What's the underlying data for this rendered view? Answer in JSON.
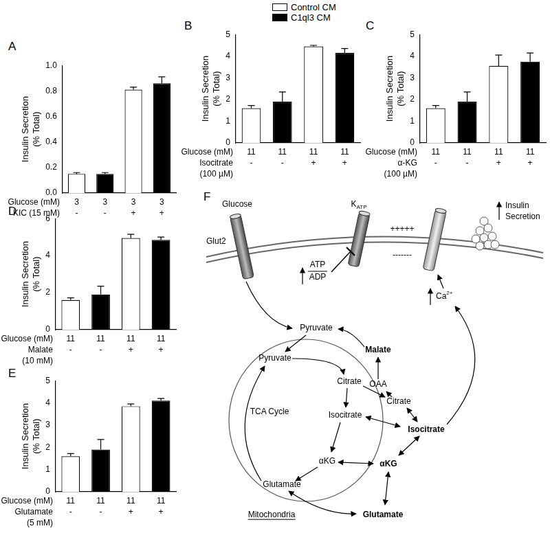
{
  "chart_data": [
    {
      "type": "bar",
      "title": "A",
      "y_label": [
        "Insulin Secretion",
        "(% Total)"
      ],
      "grid": false,
      "ylim": [
        0,
        1
      ],
      "yticks": [
        {
          "value": 0,
          "label": "0.0"
        },
        0.2,
        0.4,
        0.6,
        0.8,
        {
          "value": 1,
          "label": "1.0"
        }
      ],
      "x_rows": [
        {
          "label": "Glucose (mM)",
          "values": [
            3,
            3,
            3,
            3
          ]
        },
        {
          "label": "KIC (15 mM)",
          "values": [
            "-",
            "-",
            "+",
            "+"
          ]
        }
      ],
      "series": [
        {
          "name": "Control CM",
          "color": "#ffffff",
          "values": [
            0.15,
            null,
            0.81,
            null
          ],
          "errors": [
            0.01,
            null,
            0.02,
            null
          ]
        },
        {
          "name": "C1ql3 CM",
          "color": "#000000",
          "values": [
            null,
            0.15,
            null,
            0.86
          ],
          "errors": [
            null,
            0.01,
            null,
            0.05
          ]
        }
      ]
    },
    {
      "type": "bar",
      "title": "B",
      "y_label": [
        "Insulin Secretion",
        "(% Total)"
      ],
      "grid": false,
      "legend": "top",
      "ylim": [
        0,
        5
      ],
      "yticks": [
        0,
        1,
        2,
        3,
        4,
        5
      ],
      "x_rows": [
        {
          "label": "Glucose (mM)",
          "values": [
            11,
            11,
            11,
            11
          ]
        },
        {
          "label": [
            "Isocitrate",
            "(100 µM)"
          ],
          "values": [
            "-",
            "-",
            "+",
            "+"
          ]
        }
      ],
      "series": [
        {
          "name": "Control CM",
          "color": "#ffffff",
          "values": [
            1.6,
            null,
            4.45,
            null
          ],
          "errors": [
            0.12,
            null,
            0.05,
            null
          ]
        },
        {
          "name": "C1ql3 CM",
          "color": "#000000",
          "values": [
            null,
            1.9,
            null,
            4.15
          ],
          "errors": [
            null,
            0.45,
            null,
            0.2
          ]
        }
      ]
    },
    {
      "type": "bar",
      "title": "C",
      "y_label": [
        "Insulin Secretion",
        "(% Total)"
      ],
      "grid": false,
      "ylim": [
        0,
        5
      ],
      "yticks": [
        0,
        1,
        2,
        3,
        4,
        5
      ],
      "x_rows": [
        {
          "label": "Glucose (mM)",
          "values": [
            11,
            11,
            11,
            11
          ]
        },
        {
          "label": [
            "α-KG",
            "(100 µM)"
          ],
          "values": [
            "-",
            "-",
            "+",
            "+"
          ]
        }
      ],
      "series": [
        {
          "name": "Control CM",
          "color": "#ffffff",
          "values": [
            1.6,
            null,
            3.55,
            null
          ],
          "errors": [
            0.12,
            null,
            0.5,
            null
          ]
        },
        {
          "name": "C1ql3 CM",
          "color": "#000000",
          "values": [
            null,
            1.9,
            null,
            3.75
          ],
          "errors": [
            null,
            0.45,
            null,
            0.4
          ]
        }
      ]
    },
    {
      "type": "bar",
      "title": "D",
      "y_label": [
        "Insulin Secretion",
        "(% Total)"
      ],
      "grid": false,
      "ylim": [
        0,
        6
      ],
      "yticks": [
        0,
        2,
        4,
        6
      ],
      "x_rows": [
        {
          "label": "Glucose (mM)",
          "values": [
            11,
            11,
            11,
            11
          ]
        },
        {
          "label": [
            "Malate",
            "(10 mM)"
          ],
          "values": [
            "-",
            "-",
            "+",
            "+"
          ]
        }
      ],
      "series": [
        {
          "name": "Control CM",
          "color": "#ffffff",
          "values": [
            1.6,
            null,
            4.95,
            null
          ],
          "errors": [
            0.12,
            null,
            0.2,
            null
          ]
        },
        {
          "name": "C1ql3 CM",
          "color": "#000000",
          "values": [
            null,
            1.9,
            null,
            4.85
          ],
          "errors": [
            null,
            0.45,
            null,
            0.15
          ]
        }
      ]
    },
    {
      "type": "bar",
      "title": "E",
      "y_label": [
        "Insulin Secretion",
        "(% Total)"
      ],
      "grid": false,
      "ylim": [
        0,
        5
      ],
      "yticks": [
        0,
        1,
        2,
        3,
        4,
        5
      ],
      "x_rows": [
        {
          "label": "Glucose (mM)",
          "values": [
            11,
            11,
            11,
            11
          ]
        },
        {
          "label": [
            "Glutamate",
            "(5 mM)"
          ],
          "values": [
            "-",
            "-",
            "+",
            "+"
          ]
        }
      ],
      "series": [
        {
          "name": "Control CM",
          "color": "#ffffff",
          "values": [
            1.6,
            null,
            3.85,
            null
          ],
          "errors": [
            0.12,
            null,
            0.1,
            null
          ]
        },
        {
          "name": "C1ql3 CM",
          "color": "#000000",
          "values": [
            null,
            1.9,
            null,
            4.1
          ],
          "errors": [
            null,
            0.45,
            null,
            0.1
          ]
        }
      ]
    }
  ],
  "diagram": {
    "title": "F",
    "nodes": [
      {
        "label": "Glucose"
      },
      {
        "label": "Glut2"
      },
      {
        "label": "K",
        "subscript": "ATP"
      },
      {
        "label": "+++++"
      },
      {
        "label": "-------"
      },
      {
        "label": [
          "Insulin",
          "Secretion"
        ]
      },
      {
        "numerator": "ATP",
        "denominator": "ADP"
      },
      {
        "label": "Ca",
        "superscript": "2+"
      },
      {
        "label": "Pyruvate"
      },
      {
        "label": "Malate",
        "bold": true
      },
      {
        "label": "OAA"
      },
      {
        "label": "Citrate"
      },
      {
        "label": "Isocitrate",
        "bold": true
      },
      {
        "label": "αKG",
        "bold": true
      },
      {
        "label": "Glutamate",
        "bold": true
      },
      {
        "label": "Pyruvate"
      },
      {
        "label": "Citrate"
      },
      {
        "label": "Isocitrate"
      },
      {
        "label": "αKG"
      },
      {
        "label": "Glutamate"
      },
      {
        "label": "TCA Cycle"
      },
      {
        "label": "Mitochondria",
        "underline": true
      }
    ]
  }
}
